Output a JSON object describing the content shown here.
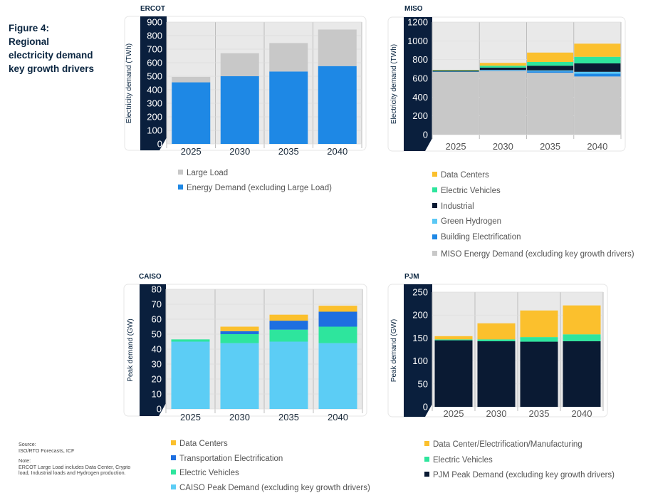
{
  "figure": {
    "title_lines": [
      "Figure 4:",
      "Regional",
      "electricity demand",
      "key growth drivers"
    ]
  },
  "colors": {
    "large_load": "#c8c8c8",
    "energy_demand": "#1e88e5",
    "data_centers": "#fbc02d",
    "electric_vehicles": "#2ee59d",
    "industrial": "#0a1a33",
    "green_hydrogen": "#5ac8f5",
    "building_electrification": "#1e88e5",
    "miso_base": "#c8c8c8",
    "transport_electrification": "#1e6fe0",
    "caiso_base": "#5ccdf5",
    "pjm_base": "#0a1a33",
    "axis_dark": "#0a1f3d",
    "plot_bg": "#e9e9e9"
  },
  "chart_data": [
    {
      "id": "ercot",
      "region": "ERCOT",
      "type": "bar",
      "stacked": true,
      "ylabel": "Electricity demand (TWh)",
      "ylim": [
        0,
        900
      ],
      "yticks": [
        0,
        50,
        100,
        150,
        200,
        250,
        300,
        350,
        400,
        450,
        500,
        550,
        600,
        650,
        700,
        750,
        800,
        850,
        900
      ],
      "ytick_labels": [
        "0",
        "100",
        "200",
        "300",
        "400",
        "500",
        "600",
        "700",
        "800",
        "900"
      ],
      "ytick_label_values": [
        0,
        100,
        200,
        300,
        400,
        500,
        600,
        700,
        800,
        900
      ],
      "categories": [
        "2025",
        "2030",
        "2035",
        "2040"
      ],
      "series": [
        {
          "name": "Energy Demand (excluding Large Load)",
          "color_key": "energy_demand",
          "values": [
            455,
            500,
            535,
            575
          ]
        },
        {
          "name": "Large Load",
          "color_key": "large_load",
          "values": [
            40,
            170,
            210,
            270
          ]
        }
      ],
      "legend_order": [
        "Large Load",
        "Energy Demand (excluding Large Load)"
      ],
      "legend_colors": [
        "large_load",
        "energy_demand"
      ]
    },
    {
      "id": "miso",
      "region": "MISO",
      "type": "bar",
      "stacked": true,
      "ylabel": "Electricity demand (TWh)",
      "ylim": [
        0,
        1200
      ],
      "ytick_label_values": [
        0,
        200,
        400,
        600,
        800,
        1000,
        1200
      ],
      "ytick_labels": [
        "0",
        "200",
        "400",
        "600",
        "800",
        "1000",
        "1200"
      ],
      "categories": [
        "2025",
        "2030",
        "2035",
        "2040"
      ],
      "series": [
        {
          "name": "MISO Energy Demand (excluding key growth drivers)",
          "color_key": "miso_base",
          "values": [
            670,
            680,
            660,
            620
          ]
        },
        {
          "name": "Building Electrification",
          "color_key": "building_electrification",
          "values": [
            2,
            5,
            15,
            30
          ]
        },
        {
          "name": "Green Hydrogen",
          "color_key": "green_hydrogen",
          "values": [
            1,
            5,
            10,
            20
          ]
        },
        {
          "name": "Industrial",
          "color_key": "industrial",
          "values": [
            10,
            25,
            50,
            90
          ]
        },
        {
          "name": "Electric Vehicles",
          "color_key": "electric_vehicles",
          "values": [
            5,
            20,
            40,
            70
          ]
        },
        {
          "name": "Data Centers",
          "color_key": "data_centers",
          "values": [
            2,
            30,
            100,
            140
          ]
        }
      ],
      "legend_order": [
        "Data Centers",
        "Electric Vehicles",
        "Industrial",
        "Green Hydrogen",
        "Building Electrification",
        "MISO Energy Demand (excluding key growth drivers)"
      ],
      "legend_colors": [
        "data_centers",
        "electric_vehicles",
        "industrial",
        "green_hydrogen",
        "building_electrification",
        "miso_base"
      ]
    },
    {
      "id": "caiso",
      "region": "CAISO",
      "type": "bar",
      "stacked": true,
      "ylabel": "Peak demand (GW)",
      "ylim": [
        0,
        80
      ],
      "ytick_label_values": [
        0,
        10,
        20,
        30,
        40,
        50,
        60,
        70,
        80
      ],
      "ytick_labels": [
        "0",
        "10",
        "20",
        "30",
        "40",
        "50",
        "60",
        "70",
        "80"
      ],
      "categories": [
        "2025",
        "2030",
        "2035",
        "2040"
      ],
      "series": [
        {
          "name": "CAISO Peak Demand (excluding key growth drivers)",
          "color_key": "caiso_base",
          "values": [
            45,
            44,
            45,
            44
          ]
        },
        {
          "name": "Electric Vehicles",
          "color_key": "electric_vehicles",
          "values": [
            1.5,
            6,
            8,
            11
          ]
        },
        {
          "name": "Transportation Electrification",
          "color_key": "transport_electrification",
          "values": [
            0,
            2,
            6,
            10
          ]
        },
        {
          "name": "Data Centers",
          "color_key": "data_centers",
          "values": [
            0,
            3,
            4,
            4
          ]
        }
      ],
      "legend_order": [
        "Data Centers",
        "Transportation Electrification",
        "Electric Vehicles",
        "CAISO Peak Demand (excluding key growth drivers)"
      ],
      "legend_colors": [
        "data_centers",
        "transport_electrification",
        "electric_vehicles",
        "caiso_base"
      ]
    },
    {
      "id": "pjm",
      "region": "PJM",
      "type": "bar",
      "stacked": true,
      "ylabel": "Peak demand (GW)",
      "ylim": [
        0,
        250
      ],
      "ytick_label_values": [
        0,
        50,
        100,
        150,
        200,
        250
      ],
      "ytick_labels": [
        "0",
        "50",
        "100",
        "150",
        "200",
        "250"
      ],
      "categories": [
        "2025",
        "2030",
        "2035",
        "2040"
      ],
      "series": [
        {
          "name": "PJM Peak Demand (excluding key growth drivers)",
          "color_key": "pjm_base",
          "values": [
            145,
            143,
            142,
            143
          ]
        },
        {
          "name": "Electric Vehicles",
          "color_key": "electric_vehicles",
          "values": [
            2,
            4,
            10,
            15
          ]
        },
        {
          "name": "Data Center/Electrification/Manufacturing",
          "color_key": "data_centers",
          "values": [
            7,
            35,
            58,
            63
          ]
        }
      ],
      "legend_order": [
        "Data Center/Electrification/Manufacturing",
        "Electric Vehicles",
        "PJM Peak Demand (excluding key growth drivers)"
      ],
      "legend_colors": [
        "data_centers",
        "electric_vehicles",
        "pjm_base"
      ]
    }
  ],
  "notes": {
    "source_label": "Source:",
    "source_text": "ISO/RTO Forecasts, ICF",
    "note_label": "Note:",
    "note_text": "ERCOT Large Load includes Data Center, Crypto load, Industrial loads and Hydrogen production."
  }
}
